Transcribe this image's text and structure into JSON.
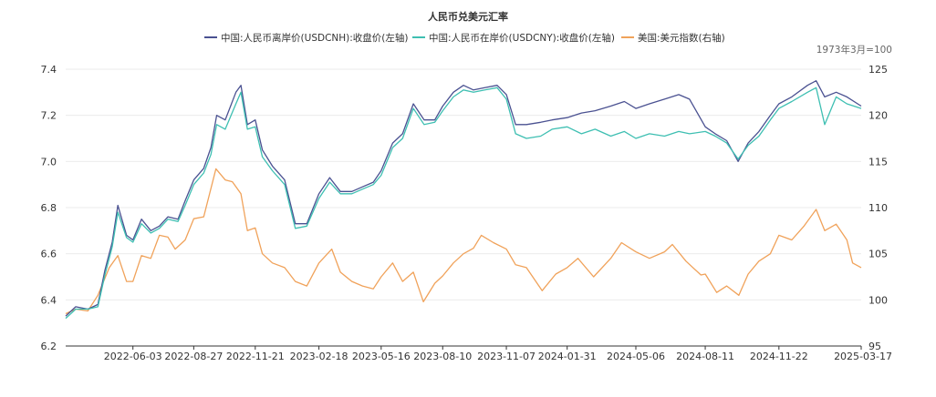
{
  "chart_data": {
    "type": "line",
    "title": "人民币兑美元汇率",
    "note": "1973年3月=100",
    "x_tick_labels": [
      "2022-06-03",
      "2022-08-27",
      "2022-11-21",
      "2023-02-18",
      "2023-05-16",
      "2023-08-10",
      "2023-11-07",
      "2024-01-31",
      "2024-05-06",
      "2024-08-11",
      "2024-11-22",
      "2025-03-17"
    ],
    "xlim": [
      "2022-03-01",
      "2025-03-17"
    ],
    "y_left": {
      "ylim": [
        6.2,
        7.4
      ],
      "ticks": [
        "6.2",
        "6.4",
        "6.6",
        "6.8",
        "7.0",
        "7.2",
        "7.4"
      ]
    },
    "y_right": {
      "ylim": [
        95,
        125
      ],
      "ticks": [
        "95",
        "100",
        "105",
        "110",
        "115",
        "120",
        "125"
      ]
    },
    "grid": "horizontal",
    "legend_position": "top-center",
    "series": [
      {
        "name": "中国:人民币离岸价(USDCNH):收盘价(左轴)",
        "axis": "left",
        "color": "#4a5191",
        "points": [
          [
            "2022-03-01",
            6.33
          ],
          [
            "2022-03-15",
            6.37
          ],
          [
            "2022-04-01",
            6.36
          ],
          [
            "2022-04-15",
            6.38
          ],
          [
            "2022-04-25",
            6.53
          ],
          [
            "2022-05-05",
            6.65
          ],
          [
            "2022-05-13",
            6.81
          ],
          [
            "2022-05-25",
            6.68
          ],
          [
            "2022-06-03",
            6.66
          ],
          [
            "2022-06-15",
            6.75
          ],
          [
            "2022-06-28",
            6.7
          ],
          [
            "2022-07-10",
            6.72
          ],
          [
            "2022-07-22",
            6.76
          ],
          [
            "2022-08-05",
            6.75
          ],
          [
            "2022-08-15",
            6.83
          ],
          [
            "2022-08-27",
            6.92
          ],
          [
            "2022-09-10",
            6.97
          ],
          [
            "2022-09-20",
            7.06
          ],
          [
            "2022-09-28",
            7.2
          ],
          [
            "2022-10-10",
            7.18
          ],
          [
            "2022-10-25",
            7.3
          ],
          [
            "2022-11-01",
            7.33
          ],
          [
            "2022-11-10",
            7.16
          ],
          [
            "2022-11-21",
            7.18
          ],
          [
            "2022-12-01",
            7.05
          ],
          [
            "2022-12-15",
            6.98
          ],
          [
            "2023-01-01",
            6.92
          ],
          [
            "2023-01-16",
            6.73
          ],
          [
            "2023-02-01",
            6.73
          ],
          [
            "2023-02-18",
            6.86
          ],
          [
            "2023-03-05",
            6.93
          ],
          [
            "2023-03-20",
            6.87
          ],
          [
            "2023-04-05",
            6.87
          ],
          [
            "2023-04-20",
            6.89
          ],
          [
            "2023-05-05",
            6.91
          ],
          [
            "2023-05-16",
            6.96
          ],
          [
            "2023-06-01",
            7.08
          ],
          [
            "2023-06-15",
            7.12
          ],
          [
            "2023-06-30",
            7.25
          ],
          [
            "2023-07-15",
            7.18
          ],
          [
            "2023-07-30",
            7.18
          ],
          [
            "2023-08-10",
            7.24
          ],
          [
            "2023-08-25",
            7.3
          ],
          [
            "2023-09-08",
            7.33
          ],
          [
            "2023-09-22",
            7.31
          ],
          [
            "2023-10-08",
            7.32
          ],
          [
            "2023-10-25",
            7.33
          ],
          [
            "2023-11-07",
            7.29
          ],
          [
            "2023-11-20",
            7.16
          ],
          [
            "2023-12-05",
            7.16
          ],
          [
            "2023-12-25",
            7.17
          ],
          [
            "2024-01-10",
            7.18
          ],
          [
            "2024-01-31",
            7.19
          ],
          [
            "2024-02-20",
            7.21
          ],
          [
            "2024-03-10",
            7.22
          ],
          [
            "2024-04-01",
            7.24
          ],
          [
            "2024-04-20",
            7.26
          ],
          [
            "2024-05-06",
            7.23
          ],
          [
            "2024-05-25",
            7.25
          ],
          [
            "2024-06-15",
            7.27
          ],
          [
            "2024-07-05",
            7.29
          ],
          [
            "2024-07-20",
            7.27
          ],
          [
            "2024-08-11",
            7.15
          ],
          [
            "2024-08-25",
            7.12
          ],
          [
            "2024-09-10",
            7.09
          ],
          [
            "2024-09-26",
            7.0
          ],
          [
            "2024-10-10",
            7.08
          ],
          [
            "2024-10-25",
            7.13
          ],
          [
            "2024-11-10",
            7.2
          ],
          [
            "2024-11-22",
            7.25
          ],
          [
            "2024-12-10",
            7.28
          ],
          [
            "2025-01-01",
            7.33
          ],
          [
            "2025-01-13",
            7.35
          ],
          [
            "2025-01-25",
            7.28
          ],
          [
            "2025-02-10",
            7.3
          ],
          [
            "2025-02-25",
            7.28
          ],
          [
            "2025-03-17",
            7.24
          ]
        ]
      },
      {
        "name": "中国:人民币在岸价(USDCNY):收盘价(左轴)",
        "axis": "left",
        "color": "#3ebfb2",
        "points": [
          [
            "2022-03-01",
            6.32
          ],
          [
            "2022-03-15",
            6.36
          ],
          [
            "2022-04-01",
            6.36
          ],
          [
            "2022-04-15",
            6.37
          ],
          [
            "2022-04-25",
            6.51
          ],
          [
            "2022-05-05",
            6.63
          ],
          [
            "2022-05-13",
            6.78
          ],
          [
            "2022-05-25",
            6.67
          ],
          [
            "2022-06-03",
            6.65
          ],
          [
            "2022-06-15",
            6.73
          ],
          [
            "2022-06-28",
            6.69
          ],
          [
            "2022-07-10",
            6.71
          ],
          [
            "2022-07-22",
            6.75
          ],
          [
            "2022-08-05",
            6.74
          ],
          [
            "2022-08-15",
            6.81
          ],
          [
            "2022-08-27",
            6.9
          ],
          [
            "2022-09-10",
            6.95
          ],
          [
            "2022-09-20",
            7.03
          ],
          [
            "2022-09-28",
            7.16
          ],
          [
            "2022-10-10",
            7.14
          ],
          [
            "2022-10-25",
            7.25
          ],
          [
            "2022-11-01",
            7.3
          ],
          [
            "2022-11-10",
            7.14
          ],
          [
            "2022-11-21",
            7.15
          ],
          [
            "2022-12-01",
            7.02
          ],
          [
            "2022-12-15",
            6.96
          ],
          [
            "2023-01-01",
            6.9
          ],
          [
            "2023-01-16",
            6.71
          ],
          [
            "2023-02-01",
            6.72
          ],
          [
            "2023-02-18",
            6.84
          ],
          [
            "2023-03-05",
            6.91
          ],
          [
            "2023-03-20",
            6.86
          ],
          [
            "2023-04-05",
            6.86
          ],
          [
            "2023-04-20",
            6.88
          ],
          [
            "2023-05-05",
            6.9
          ],
          [
            "2023-05-16",
            6.94
          ],
          [
            "2023-06-01",
            7.06
          ],
          [
            "2023-06-15",
            7.1
          ],
          [
            "2023-06-30",
            7.23
          ],
          [
            "2023-07-15",
            7.16
          ],
          [
            "2023-07-30",
            7.17
          ],
          [
            "2023-08-10",
            7.22
          ],
          [
            "2023-08-25",
            7.28
          ],
          [
            "2023-09-08",
            7.31
          ],
          [
            "2023-09-22",
            7.3
          ],
          [
            "2023-10-08",
            7.31
          ],
          [
            "2023-10-25",
            7.32
          ],
          [
            "2023-11-07",
            7.27
          ],
          [
            "2023-11-20",
            7.12
          ],
          [
            "2023-12-05",
            7.1
          ],
          [
            "2023-12-25",
            7.11
          ],
          [
            "2024-01-10",
            7.14
          ],
          [
            "2024-01-31",
            7.15
          ],
          [
            "2024-02-20",
            7.12
          ],
          [
            "2024-03-10",
            7.14
          ],
          [
            "2024-04-01",
            7.11
          ],
          [
            "2024-04-20",
            7.13
          ],
          [
            "2024-05-06",
            7.1
          ],
          [
            "2024-05-25",
            7.12
          ],
          [
            "2024-06-15",
            7.11
          ],
          [
            "2024-07-05",
            7.13
          ],
          [
            "2024-07-20",
            7.12
          ],
          [
            "2024-08-11",
            7.13
          ],
          [
            "2024-08-25",
            7.11
          ],
          [
            "2024-09-10",
            7.08
          ],
          [
            "2024-09-26",
            7.01
          ],
          [
            "2024-10-10",
            7.07
          ],
          [
            "2024-10-25",
            7.11
          ],
          [
            "2024-11-10",
            7.18
          ],
          [
            "2024-11-22",
            7.23
          ],
          [
            "2024-12-10",
            7.26
          ],
          [
            "2025-01-01",
            7.3
          ],
          [
            "2025-01-13",
            7.32
          ],
          [
            "2025-01-25",
            7.16
          ],
          [
            "2025-02-10",
            7.28
          ],
          [
            "2025-02-25",
            7.25
          ],
          [
            "2025-03-17",
            7.23
          ]
        ]
      },
      {
        "name": "美国:美元指数(右轴)",
        "axis": "right",
        "color": "#f0a25a",
        "points": [
          [
            "2022-03-01",
            98.5
          ],
          [
            "2022-03-15",
            99.0
          ],
          [
            "2022-04-01",
            98.8
          ],
          [
            "2022-04-15",
            100.5
          ],
          [
            "2022-05-01",
            103.5
          ],
          [
            "2022-05-13",
            104.8
          ],
          [
            "2022-05-25",
            102.0
          ],
          [
            "2022-06-03",
            102.0
          ],
          [
            "2022-06-15",
            104.8
          ],
          [
            "2022-06-28",
            104.5
          ],
          [
            "2022-07-10",
            107.0
          ],
          [
            "2022-07-22",
            106.8
          ],
          [
            "2022-08-01",
            105.5
          ],
          [
            "2022-08-15",
            106.5
          ],
          [
            "2022-08-27",
            108.8
          ],
          [
            "2022-09-10",
            109.0
          ],
          [
            "2022-09-27",
            114.2
          ],
          [
            "2022-10-10",
            113.0
          ],
          [
            "2022-10-20",
            112.8
          ],
          [
            "2022-11-01",
            111.5
          ],
          [
            "2022-11-10",
            107.5
          ],
          [
            "2022-11-21",
            107.8
          ],
          [
            "2022-12-01",
            105.0
          ],
          [
            "2022-12-15",
            104.0
          ],
          [
            "2023-01-01",
            103.5
          ],
          [
            "2023-01-16",
            102.0
          ],
          [
            "2023-02-01",
            101.5
          ],
          [
            "2023-02-18",
            104.0
          ],
          [
            "2023-03-08",
            105.5
          ],
          [
            "2023-03-20",
            103.0
          ],
          [
            "2023-04-05",
            102.0
          ],
          [
            "2023-04-20",
            101.5
          ],
          [
            "2023-05-05",
            101.2
          ],
          [
            "2023-05-16",
            102.5
          ],
          [
            "2023-06-01",
            104.0
          ],
          [
            "2023-06-15",
            102.0
          ],
          [
            "2023-06-30",
            103.0
          ],
          [
            "2023-07-14",
            99.8
          ],
          [
            "2023-07-30",
            101.8
          ],
          [
            "2023-08-10",
            102.6
          ],
          [
            "2023-08-25",
            104.0
          ],
          [
            "2023-09-08",
            105.0
          ],
          [
            "2023-09-22",
            105.6
          ],
          [
            "2023-10-03",
            107.0
          ],
          [
            "2023-10-20",
            106.2
          ],
          [
            "2023-11-07",
            105.5
          ],
          [
            "2023-11-20",
            103.8
          ],
          [
            "2023-12-05",
            103.5
          ],
          [
            "2023-12-27",
            101.0
          ],
          [
            "2024-01-15",
            102.8
          ],
          [
            "2024-01-31",
            103.5
          ],
          [
            "2024-02-15",
            104.5
          ],
          [
            "2024-03-08",
            102.5
          ],
          [
            "2024-04-01",
            104.5
          ],
          [
            "2024-04-16",
            106.2
          ],
          [
            "2024-05-06",
            105.2
          ],
          [
            "2024-05-25",
            104.5
          ],
          [
            "2024-06-15",
            105.2
          ],
          [
            "2024-06-26",
            106.0
          ],
          [
            "2024-07-15",
            104.2
          ],
          [
            "2024-08-05",
            102.7
          ],
          [
            "2024-08-11",
            102.8
          ],
          [
            "2024-08-27",
            100.8
          ],
          [
            "2024-09-10",
            101.5
          ],
          [
            "2024-09-27",
            100.5
          ],
          [
            "2024-10-10",
            102.8
          ],
          [
            "2024-10-25",
            104.2
          ],
          [
            "2024-11-10",
            105.0
          ],
          [
            "2024-11-22",
            107.0
          ],
          [
            "2024-12-10",
            106.5
          ],
          [
            "2024-12-27",
            108.0
          ],
          [
            "2025-01-13",
            109.8
          ],
          [
            "2025-01-25",
            107.5
          ],
          [
            "2025-02-10",
            108.2
          ],
          [
            "2025-02-25",
            106.5
          ],
          [
            "2025-03-05",
            104.0
          ],
          [
            "2025-03-17",
            103.5
          ]
        ]
      }
    ]
  }
}
